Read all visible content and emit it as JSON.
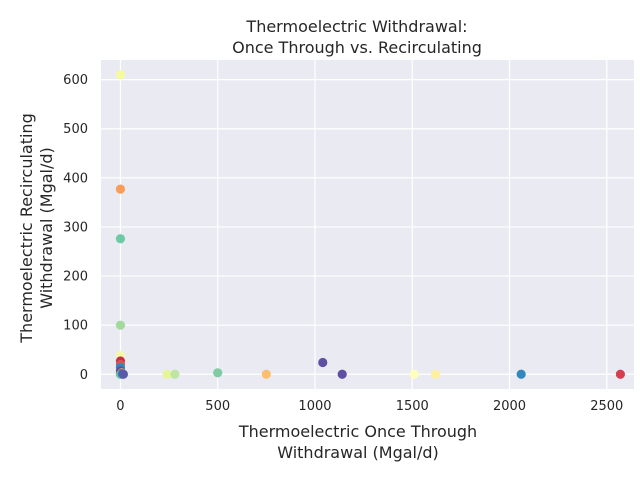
{
  "chart_data": {
    "type": "scatter",
    "title": [
      "Thermoelectric Withdrawal:",
      "Once Through vs. Recirculating"
    ],
    "xlabel": [
      "Thermoelectric Once Through",
      "Withdrawal (Mgal/d)"
    ],
    "ylabel": [
      "Thermoelectric Recirculating",
      "Withdrawal (Mgal/d)"
    ],
    "xlim": [
      -100,
      2640
    ],
    "ylim": [
      -30,
      640
    ],
    "xticks": [
      0,
      500,
      1000,
      1500,
      2000,
      2500
    ],
    "yticks": [
      0,
      100,
      200,
      300,
      400,
      500,
      600
    ],
    "grid": true,
    "background": "#eaeaf2",
    "points": [
      {
        "x": 0,
        "y": 610,
        "color": "#f5fa9c"
      },
      {
        "x": 0,
        "y": 377,
        "color": "#f99d59"
      },
      {
        "x": 0,
        "y": 276,
        "color": "#6ccba4"
      },
      {
        "x": 0,
        "y": 100,
        "color": "#a4d99e"
      },
      {
        "x": 0,
        "y": 38,
        "color": "#f4f9a8"
      },
      {
        "x": 0,
        "y": 27,
        "color": "#c72c4a"
      },
      {
        "x": 0,
        "y": 20,
        "color": "#e0524a"
      },
      {
        "x": 0,
        "y": 14,
        "color": "#3288bd"
      },
      {
        "x": 0,
        "y": 7,
        "color": "#5e4fa2"
      },
      {
        "x": 5,
        "y": 3,
        "color": "#fdb466"
      },
      {
        "x": 0,
        "y": 1,
        "color": "#9e0142"
      },
      {
        "x": 3,
        "y": 0,
        "color": "#48a0b2"
      },
      {
        "x": 0,
        "y": 0,
        "color": "#66c2a5"
      },
      {
        "x": 10,
        "y": 1,
        "color": "#3a7cb8"
      },
      {
        "x": 15,
        "y": 0,
        "color": "#5a5aa6"
      },
      {
        "x": 240,
        "y": 0,
        "color": "#e6f598"
      },
      {
        "x": 280,
        "y": 0,
        "color": "#bfe5a0"
      },
      {
        "x": 500,
        "y": 3,
        "color": "#7fcca3"
      },
      {
        "x": 750,
        "y": 0,
        "color": "#fdbf6f"
      },
      {
        "x": 1040,
        "y": 24,
        "color": "#5e4fa2"
      },
      {
        "x": 1140,
        "y": 0,
        "color": "#5e4fa2"
      },
      {
        "x": 1510,
        "y": 0,
        "color": "#ffffbf"
      },
      {
        "x": 1620,
        "y": 0,
        "color": "#fef0a0"
      },
      {
        "x": 2060,
        "y": 0,
        "color": "#3288bd"
      },
      {
        "x": 2570,
        "y": 0,
        "color": "#d53e4f"
      }
    ]
  }
}
